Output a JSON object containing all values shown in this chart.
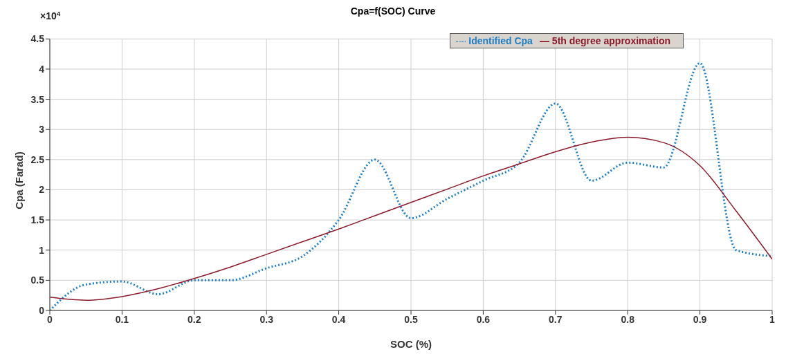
{
  "chart_data": {
    "type": "line",
    "title": "Cpa=f(SOC) Curve",
    "xlabel": "SOC (%)",
    "ylabel": "Cpa (Farad)",
    "annotations": [
      "×10$^{4}$"
    ],
    "x": [
      0,
      0.05,
      0.1,
      0.15,
      0.2,
      0.25,
      0.3,
      0.35,
      0.4,
      0.45,
      0.5,
      0.55,
      0.6,
      0.65,
      0.7,
      0.75,
      0.8,
      0.85,
      0.9,
      0.95,
      1
    ],
    "series": [
      {
        "name": "Identified Cpa",
        "color": "#1f7fc4",
        "line_style": "dotted",
        "values": [
          0,
          0.43,
          0.48,
          0.27,
          0.5,
          0.5,
          0.7,
          0.9,
          1.5,
          2.5,
          1.53,
          1.85,
          2.15,
          2.45,
          3.43,
          2.15,
          2.45,
          2.37,
          4.1,
          1.0,
          0.9
        ]
      },
      {
        "name": "5th degree approximation",
        "color": "#8b1a2b",
        "line_style": "solid",
        "values": [
          0.22,
          0.17,
          0.23,
          0.36,
          0.53,
          0.72,
          0.93,
          1.14,
          1.35,
          1.57,
          1.79,
          2.01,
          2.23,
          2.43,
          2.63,
          2.79,
          2.87,
          2.78,
          2.4,
          1.65,
          0.85
        ]
      }
    ],
    "xlim": [
      0,
      1
    ],
    "xticks": [
      0,
      0.1,
      0.2,
      0.3,
      0.4,
      0.5,
      0.6,
      0.7,
      0.8,
      0.9,
      1
    ],
    "ylim": [
      0,
      4.5
    ],
    "yticks": [
      0,
      0.5,
      1,
      1.5,
      2,
      2.5,
      3,
      3.5,
      4,
      4.5
    ],
    "grid": true,
    "legend": "top right",
    "marker": "none"
  }
}
